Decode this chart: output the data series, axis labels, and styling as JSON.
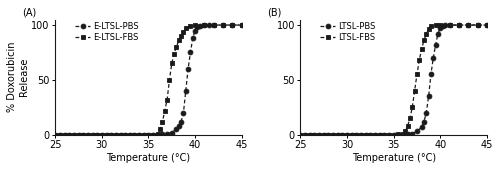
{
  "panel_A": {
    "label": "(A)",
    "series": [
      {
        "name": "E-LTSL-PBS",
        "marker": "o",
        "x": [
          25,
          25.5,
          26,
          26.5,
          27,
          27.5,
          28,
          28.5,
          29,
          29.5,
          30,
          30.5,
          31,
          31.5,
          32,
          32.5,
          33,
          33.5,
          34,
          34.5,
          35,
          35.5,
          36,
          36.5,
          37,
          37.5,
          38,
          38.25,
          38.5,
          38.75,
          39,
          39.25,
          39.5,
          39.75,
          40,
          40.25,
          40.5,
          41,
          41.5,
          42,
          43,
          44,
          45
        ],
        "y": [
          0,
          0,
          0,
          0,
          0,
          0,
          0,
          0,
          0,
          0,
          0,
          0,
          0,
          0,
          0,
          0,
          0,
          0,
          0,
          0,
          0,
          0,
          0,
          0.5,
          1,
          2,
          5,
          8,
          12,
          20,
          40,
          60,
          75,
          88,
          95,
          98,
          99,
          100,
          100,
          100,
          100,
          100,
          100
        ]
      },
      {
        "name": "E-LTSL-FBS",
        "marker": "s",
        "x": [
          25,
          25.5,
          26,
          26.5,
          27,
          27.5,
          28,
          28.5,
          29,
          29.5,
          30,
          30.5,
          31,
          31.5,
          32,
          32.5,
          33,
          33.5,
          34,
          34.5,
          35,
          35.5,
          36,
          36.25,
          36.5,
          36.75,
          37,
          37.25,
          37.5,
          37.75,
          38,
          38.25,
          38.5,
          38.75,
          39,
          39.5,
          40,
          41,
          42,
          43,
          44,
          45
        ],
        "y": [
          0,
          0,
          0,
          0,
          0,
          0,
          0,
          0,
          0,
          0,
          0,
          0,
          0,
          0,
          0,
          0,
          0,
          0,
          0,
          0,
          0,
          0,
          1,
          5,
          12,
          22,
          32,
          50,
          65,
          74,
          80,
          86,
          90,
          94,
          97,
          99,
          100,
          100,
          100,
          100,
          100,
          100
        ]
      }
    ],
    "ylabel": "% Doxorubicin\nRelease",
    "xlabel": "Temperature (°C)",
    "xlim": [
      25,
      45
    ],
    "ylim": [
      0,
      105
    ],
    "yticks": [
      0,
      50,
      100
    ],
    "xticks": [
      25,
      30,
      35,
      40,
      45
    ]
  },
  "panel_B": {
    "label": "(B)",
    "series": [
      {
        "name": "LTSL-PBS",
        "marker": "o",
        "x": [
          25,
          25.5,
          26,
          26.5,
          27,
          27.5,
          28,
          28.5,
          29,
          29.5,
          30,
          30.5,
          31,
          31.5,
          32,
          32.5,
          33,
          33.5,
          34,
          34.5,
          35,
          35.5,
          36,
          36.5,
          37,
          37.5,
          38,
          38.25,
          38.5,
          38.75,
          39,
          39.25,
          39.5,
          39.75,
          40,
          40.25,
          40.5,
          41,
          42,
          43,
          44,
          45
        ],
        "y": [
          0,
          0,
          0,
          0,
          0,
          0,
          0,
          0,
          0,
          0,
          0,
          0,
          0,
          0,
          0,
          0,
          0,
          0,
          0,
          0,
          0,
          0,
          0,
          0.5,
          1,
          3,
          7,
          12,
          20,
          35,
          55,
          70,
          82,
          92,
          97,
          99,
          100,
          100,
          100,
          100,
          100,
          100
        ]
      },
      {
        "name": "LTSL-FBS",
        "marker": "s",
        "x": [
          25,
          25.5,
          26,
          26.5,
          27,
          27.5,
          28,
          28.5,
          29,
          29.5,
          30,
          30.5,
          31,
          31.5,
          32,
          32.5,
          33,
          33.5,
          34,
          34.5,
          35,
          35.5,
          36,
          36.25,
          36.5,
          36.75,
          37,
          37.25,
          37.5,
          37.75,
          38,
          38.25,
          38.5,
          38.75,
          39,
          39.5,
          40,
          41,
          42,
          43,
          44,
          45
        ],
        "y": [
          0,
          0,
          0,
          0,
          0,
          0,
          0,
          0,
          0,
          0,
          0,
          0,
          0,
          0,
          0,
          0,
          0,
          0,
          0,
          0,
          0,
          0.5,
          1,
          3,
          8,
          15,
          25,
          40,
          55,
          68,
          78,
          86,
          92,
          96,
          99,
          100,
          100,
          100,
          100,
          100,
          100,
          100
        ]
      }
    ],
    "ylabel": "",
    "xlabel": "Temperature (°C)",
    "xlim": [
      25,
      45
    ],
    "ylim": [
      0,
      105
    ],
    "yticks": [
      0,
      50,
      100
    ],
    "xticks": [
      25,
      30,
      35,
      40,
      45
    ]
  },
  "line_color": "#1a1a1a",
  "marker_color": "#1a1a1a",
  "marker_size": 3.5,
  "line_width": 0.9,
  "font_size": 7,
  "legend_font_size": 6,
  "label_font_size": 7,
  "background_color": "#ffffff"
}
